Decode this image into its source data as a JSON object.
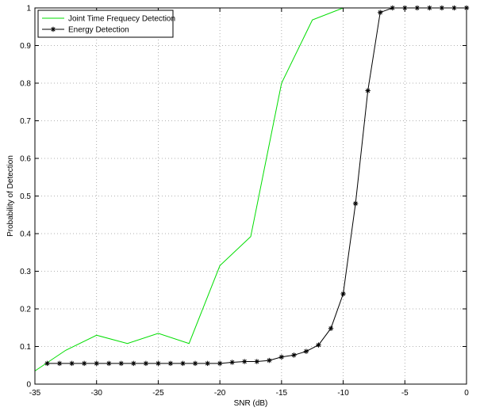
{
  "chart_data": {
    "type": "line",
    "xlabel": "SNR (dB)",
    "ylabel": "Probability of Detection",
    "xlim": [
      -35,
      0
    ],
    "ylim": [
      0,
      1
    ],
    "xticks": [
      -35,
      -30,
      -25,
      -20,
      -15,
      -10,
      -5,
      0
    ],
    "yticks": [
      0,
      0.1,
      0.2,
      0.3,
      0.4,
      0.5,
      0.6,
      0.7,
      0.8,
      0.9,
      1
    ],
    "grid": true,
    "legend_position": "top-left",
    "series": [
      {
        "name": "Joint Time Frequecy Detection",
        "color": "#00dd00",
        "marker": "none",
        "x": [
          -35,
          -32.5,
          -30,
          -27.5,
          -25,
          -22.5,
          -20,
          -17.5,
          -15,
          -12.5,
          -10,
          -7.5,
          -5,
          -2.5,
          0
        ],
        "y": [
          0.035,
          0.09,
          0.13,
          0.108,
          0.135,
          0.108,
          0.315,
          0.392,
          0.8,
          0.968,
          1.0,
          1.0,
          1.0,
          1.0,
          1.0
        ]
      },
      {
        "name": "Energy Detection",
        "color": "#000000",
        "marker": "asterisk",
        "x": [
          -34,
          -33,
          -32,
          -31,
          -30,
          -29,
          -28,
          -27,
          -26,
          -25,
          -24,
          -23,
          -22,
          -21,
          -20,
          -19,
          -18,
          -17,
          -16,
          -15,
          -14,
          -13,
          -12,
          -11,
          -10,
          -9,
          -8,
          -7,
          -6,
          -5,
          -4,
          -3,
          -2,
          -1,
          0
        ],
        "y": [
          0.055,
          0.055,
          0.055,
          0.055,
          0.055,
          0.055,
          0.055,
          0.055,
          0.055,
          0.055,
          0.055,
          0.055,
          0.055,
          0.055,
          0.055,
          0.058,
          0.06,
          0.06,
          0.063,
          0.072,
          0.077,
          0.087,
          0.104,
          0.148,
          0.24,
          0.48,
          0.78,
          0.988,
          1.0,
          1.0,
          1.0,
          1.0,
          1.0,
          1.0,
          1.0
        ]
      }
    ]
  }
}
